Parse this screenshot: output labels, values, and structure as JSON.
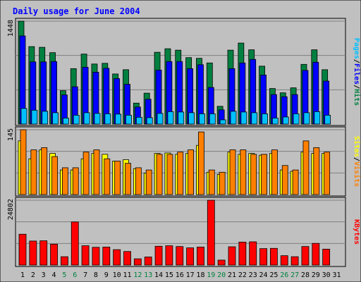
{
  "title": "Daily usage for June 2004",
  "colors": {
    "frame_bg": "#c0c0c0",
    "plot_bg": "#c0c0c0",
    "title": "#0000ff",
    "hits": "#008040",
    "files": "#0000ff",
    "pages": "#00c0ff",
    "visits": "#ff8000",
    "sites": "#ffff00",
    "kbytes": "#ff0000",
    "weekend_label": "#008040",
    "day_label": "#000000",
    "grid": "#808080",
    "separator": "#000000"
  },
  "chart_data": [
    {
      "type": "bar",
      "id": "hits_files_pages",
      "y_max_label": "1448",
      "ylim": [
        0,
        1448
      ],
      "grid": true,
      "legend_right": [
        "Pages",
        "Files",
        "Hits"
      ],
      "categories": [
        "1",
        "2",
        "3",
        "4",
        "5",
        "6",
        "7",
        "8",
        "9",
        "10",
        "11",
        "12",
        "13",
        "14",
        "15",
        "16",
        "17",
        "18",
        "19",
        "20",
        "21",
        "22",
        "23",
        "24",
        "25",
        "26",
        "27",
        "28",
        "29",
        "30",
        "31"
      ],
      "series": [
        {
          "name": "Hits",
          "values": [
            1448,
            1090,
            1080,
            1005,
            470,
            780,
            985,
            845,
            855,
            705,
            765,
            295,
            435,
            1010,
            1060,
            1040,
            935,
            925,
            860,
            250,
            1040,
            1140,
            1045,
            815,
            500,
            440,
            510,
            840,
            1045,
            765,
            0
          ]
        },
        {
          "name": "Files",
          "values": [
            1240,
            875,
            875,
            880,
            410,
            525,
            800,
            730,
            785,
            640,
            560,
            240,
            350,
            760,
            880,
            880,
            780,
            835,
            515,
            200,
            780,
            860,
            910,
            690,
            415,
            385,
            415,
            755,
            870,
            605,
            0
          ]
        },
        {
          "name": "Pages",
          "values": [
            220,
            195,
            180,
            160,
            85,
            125,
            160,
            150,
            145,
            140,
            125,
            95,
            90,
            150,
            175,
            170,
            160,
            145,
            145,
            60,
            180,
            170,
            160,
            145,
            85,
            100,
            145,
            160,
            175,
            125,
            0
          ]
        }
      ]
    },
    {
      "type": "bar",
      "id": "visits_sites",
      "y_max_label": "145",
      "ylim": [
        0,
        145
      ],
      "grid": true,
      "legend_right": [
        "Sites",
        "Visits"
      ],
      "categories": [
        "1",
        "2",
        "3",
        "4",
        "5",
        "6",
        "7",
        "8",
        "9",
        "10",
        "11",
        "12",
        "13",
        "14",
        "15",
        "16",
        "17",
        "18",
        "19",
        "20",
        "21",
        "22",
        "23",
        "24",
        "25",
        "26",
        "27",
        "28",
        "29",
        "30",
        "31"
      ],
      "series": [
        {
          "name": "Visits",
          "values": [
            145,
            100,
            105,
            85,
            60,
            60,
            95,
            100,
            80,
            75,
            70,
            60,
            55,
            90,
            90,
            95,
            100,
            140,
            55,
            50,
            100,
            100,
            90,
            90,
            100,
            65,
            55,
            120,
            105,
            95,
            0
          ]
        },
        {
          "name": "Sites",
          "values": [
            120,
            80,
            100,
            92,
            55,
            55,
            80,
            92,
            90,
            75,
            78,
            58,
            48,
            92,
            93,
            90,
            92,
            110,
            50,
            45,
            95,
            90,
            92,
            88,
            92,
            55,
            52,
            95,
            92,
            92,
            0
          ]
        }
      ]
    },
    {
      "type": "bar",
      "id": "kbytes",
      "y_max_label": "24802",
      "ylim": [
        0,
        24802
      ],
      "grid": true,
      "legend_right": [
        "KBytes"
      ],
      "categories": [
        "1",
        "2",
        "3",
        "4",
        "5",
        "6",
        "7",
        "8",
        "9",
        "10",
        "11",
        "12",
        "13",
        "14",
        "15",
        "16",
        "17",
        "18",
        "19",
        "20",
        "21",
        "22",
        "23",
        "24",
        "25",
        "26",
        "27",
        "28",
        "29",
        "30",
        "31"
      ],
      "weekend_days": [
        "5",
        "6",
        "12",
        "13",
        "19",
        "20",
        "26",
        "27"
      ],
      "series": [
        {
          "name": "KBytes",
          "values": [
            11800,
            9200,
            9300,
            8000,
            3200,
            16500,
            7400,
            6800,
            6900,
            5900,
            5200,
            2400,
            3100,
            7200,
            7400,
            7100,
            6600,
            6900,
            24802,
            1900,
            7000,
            8800,
            8900,
            6300,
            6400,
            3600,
            3200,
            7100,
            8300,
            6100,
            0
          ]
        }
      ]
    }
  ]
}
